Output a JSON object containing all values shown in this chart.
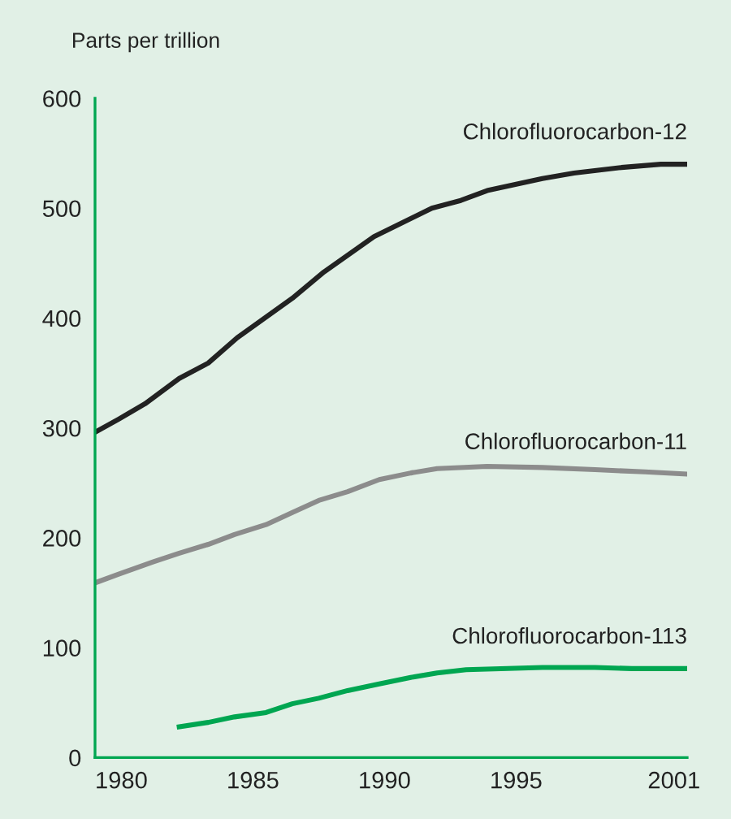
{
  "chart_data": {
    "type": "line",
    "ylabel": "Parts per trillion",
    "xlim": [
      1979,
      2001.5
    ],
    "xticks": [
      1980,
      1985,
      1990,
      1995,
      2001
    ],
    "ylim": [
      0,
      600
    ],
    "yticks": [
      0,
      100,
      200,
      300,
      400,
      500,
      600
    ],
    "grid": false,
    "legend": false,
    "marker": "none",
    "line_style": "solid",
    "series": [
      {
        "name": "Chlorofluorocarbon-12",
        "color": "#222222",
        "x": [
          1979.0,
          1979.9,
          1980.9,
          1982.2,
          1983.3,
          1984.4,
          1986.5,
          1987.7,
          1989.6,
          1991.8,
          1992.9,
          1993.9,
          1996.0,
          1997.2,
          1999.0,
          2000.5,
          2001.5
        ],
        "values": [
          296,
          308,
          322,
          345,
          359,
          382,
          418,
          442,
          474,
          500,
          507,
          516,
          527,
          532,
          537,
          540,
          540
        ]
      },
      {
        "name": "Chlorofluorocarbon-11",
        "color": "#8c8c8c",
        "x": [
          1979.0,
          1979.9,
          1981.2,
          1982.2,
          1983.3,
          1984.3,
          1985.5,
          1986.5,
          1987.5,
          1988.6,
          1989.8,
          1991.0,
          1992.0,
          1993.9,
          1996.0,
          1998.0,
          1999.9,
          2001.5
        ],
        "values": [
          159,
          167,
          178,
          186,
          194,
          203,
          212,
          223,
          234,
          242,
          253,
          259,
          263,
          265,
          264,
          262,
          260,
          258
        ]
      },
      {
        "name": "Chlorofluorocarbon-113",
        "color": "#00a651",
        "x": [
          1982.2,
          1983.3,
          1984.3,
          1985.5,
          1986.5,
          1987.5,
          1988.6,
          1989.8,
          1991.0,
          1992.0,
          1993.1,
          1996.0,
          1998.0,
          1999.4,
          2001.5
        ],
        "values": [
          28,
          32,
          37,
          41,
          49,
          54,
          61,
          67,
          73,
          77,
          80,
          82,
          82,
          81,
          81
        ]
      }
    ]
  }
}
